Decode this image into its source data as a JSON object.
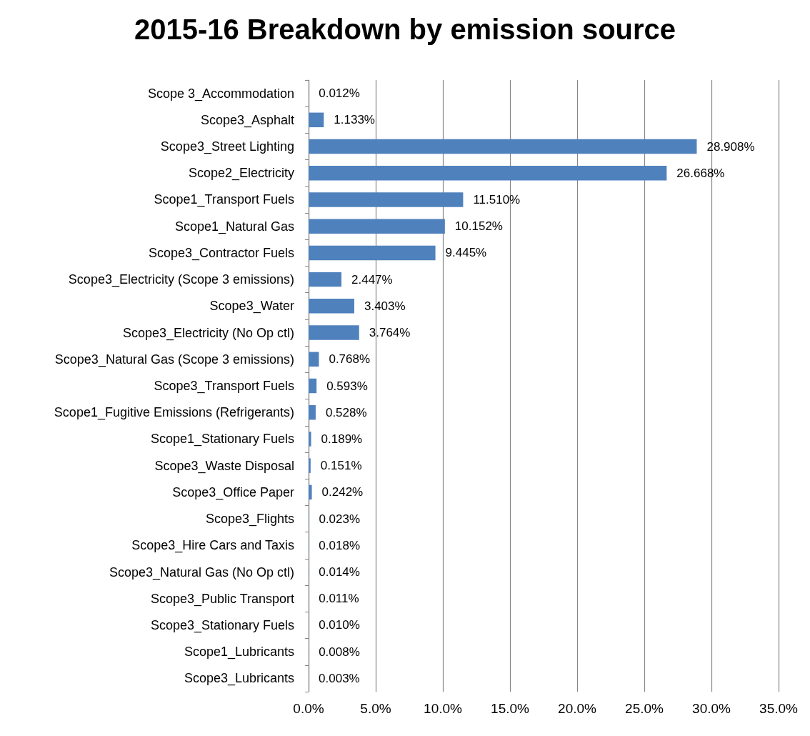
{
  "chart_data": {
    "type": "bar",
    "orientation": "horizontal",
    "title": "2015-16 Breakdown by emission source",
    "categories": [
      "Scope 3_Accommodation",
      "Scope3_Asphalt",
      "Scope3_Street Lighting",
      "Scope2_Electricity",
      "Scope1_Transport Fuels",
      "Scope1_Natural Gas",
      "Scope3_Contractor Fuels",
      "Scope3_Electricity (Scope 3 emissions)",
      "Scope3_Water",
      "Scope3_Electricity (No Op ctl)",
      "Scope3_Natural Gas (Scope 3 emissions)",
      "Scope3_Transport Fuels",
      "Scope1_Fugitive Emissions (Refrigerants)",
      "Scope1_Stationary Fuels",
      "Scope3_Waste Disposal",
      "Scope3_Office Paper",
      "Scope3_Flights",
      "Scope3_Hire Cars and Taxis",
      "Scope3_Natural Gas (No Op ctl)",
      "Scope3_Public Transport",
      "Scope3_Stationary Fuels",
      "Scope1_Lubricants",
      "Scope3_Lubricants"
    ],
    "values": [
      0.012,
      1.133,
      28.908,
      26.668,
      11.51,
      10.152,
      9.445,
      2.447,
      3.403,
      3.764,
      0.768,
      0.593,
      0.528,
      0.189,
      0.151,
      0.242,
      0.023,
      0.018,
      0.014,
      0.011,
      0.01,
      0.008,
      0.003
    ],
    "value_labels": [
      "0.012%",
      "1.133%",
      "28.908%",
      "26.668%",
      "11.510%",
      "10.152%",
      "9.445%",
      "2.447%",
      "3.403%",
      "3.764%",
      "0.768%",
      "0.593%",
      "0.528%",
      "0.189%",
      "0.151%",
      "0.242%",
      "0.023%",
      "0.018%",
      "0.014%",
      "0.011%",
      "0.010%",
      "0.008%",
      "0.003%"
    ],
    "color": "#4f81bd",
    "xlim": [
      0,
      35
    ],
    "xticks": [
      {
        "value": 0,
        "label": "0.0%"
      },
      {
        "value": 5,
        "label": "5.0%"
      },
      {
        "value": 10,
        "label": "10.0%"
      },
      {
        "value": 15,
        "label": "15.0%"
      },
      {
        "value": 20,
        "label": "20.0%"
      },
      {
        "value": 25,
        "label": "25.0%"
      },
      {
        "value": 30,
        "label": "30.0%"
      },
      {
        "value": 35,
        "label": "35.0%"
      }
    ],
    "grid": "x"
  }
}
